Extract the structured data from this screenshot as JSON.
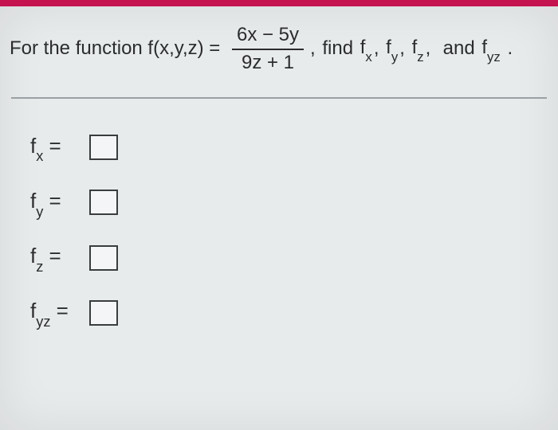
{
  "colors": {
    "top_bar": "#c4134e",
    "page_bg": "#e8ebec",
    "text": "#2a2c2d",
    "divider": "#9aa0a3",
    "input_border": "#3a3d3e",
    "input_bg": "#f3f5f6"
  },
  "question": {
    "prefix": "For the function f(x,y,z) = ",
    "fraction": {
      "numerator": "6x − 5y",
      "denominator": "9z + 1"
    },
    "comma": ", ",
    "find_word": "find ",
    "list_sep": ", ",
    "and_word": " and ",
    "period": " .",
    "terms": {
      "fx_base": "f",
      "fx_sub": "x",
      "fy_base": "f",
      "fy_sub": "y",
      "fz_base": "f",
      "fz_sub": "z",
      "fyz_base": "f",
      "fyz_sub": "yz"
    }
  },
  "answers": [
    {
      "base": "f",
      "sub": "x",
      "equals": " = "
    },
    {
      "base": "f",
      "sub": "y",
      "equals": " = "
    },
    {
      "base": "f",
      "sub": "z",
      "equals": " = "
    },
    {
      "base": "f",
      "sub": "yz",
      "equals": " = "
    }
  ]
}
